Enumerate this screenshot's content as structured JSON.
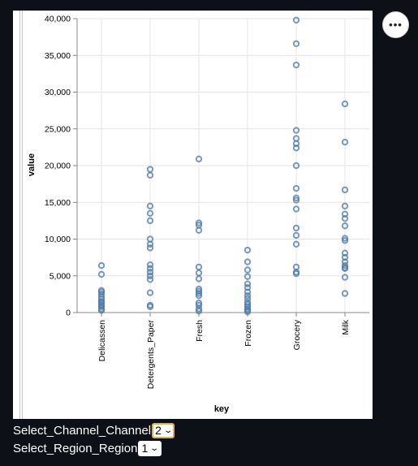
{
  "menu": {
    "icon": "more-horizontal-icon",
    "label": "•••"
  },
  "chart_data": {
    "type": "scatter",
    "xlabel": "key",
    "ylabel": "value",
    "ylim": [
      0,
      40000
    ],
    "yticks": [
      0,
      5000,
      10000,
      15000,
      20000,
      25000,
      30000,
      35000,
      40000
    ],
    "ytick_labels": [
      "0",
      "5,000",
      "10,000",
      "15,000",
      "20,000",
      "25,000",
      "30,000",
      "35,000",
      "40,000"
    ],
    "categories": [
      "Delicassen",
      "Detergents_Paper",
      "Fresh",
      "Frozen",
      "Grocery",
      "Milk"
    ],
    "grid": true,
    "marker": "hollow-circle",
    "color": "#4c78a8",
    "points": {
      "Delicassen": [
        6400,
        5200,
        3000,
        2800,
        2500,
        2100,
        1800,
        1500,
        1300,
        1000,
        800,
        500,
        300
      ],
      "Detergents_Paper": [
        19500,
        18700,
        14500,
        13500,
        12500,
        10000,
        9300,
        8800,
        6500,
        6000,
        5500,
        5000,
        4500,
        2700,
        1000,
        800
      ],
      "Fresh": [
        20900,
        12200,
        11900,
        11200,
        6200,
        5400,
        4600,
        3200,
        2900,
        2600,
        2300,
        1300,
        1000,
        500,
        200
      ],
      "Frozen": [
        8500,
        6900,
        5800,
        4900,
        3900,
        3400,
        2800,
        2300,
        1900,
        1400,
        1100,
        800,
        500,
        300,
        100
      ],
      "Grocery": [
        39800,
        36600,
        33700,
        24800,
        23700,
        23000,
        22400,
        20000,
        16900,
        15600,
        15300,
        14100,
        11500,
        10500,
        9300,
        6200,
        5500,
        5300
      ],
      "Milk": [
        28400,
        23200,
        16700,
        14500,
        13400,
        12800,
        11800,
        10100,
        9800,
        8100,
        7500,
        6900,
        6400,
        6100,
        6000,
        4800,
        2600
      ]
    }
  },
  "controls": [
    {
      "label": "Select_Channel_Channel",
      "value": "2"
    },
    {
      "label": "Select_Region_Region",
      "value": "1"
    }
  ]
}
